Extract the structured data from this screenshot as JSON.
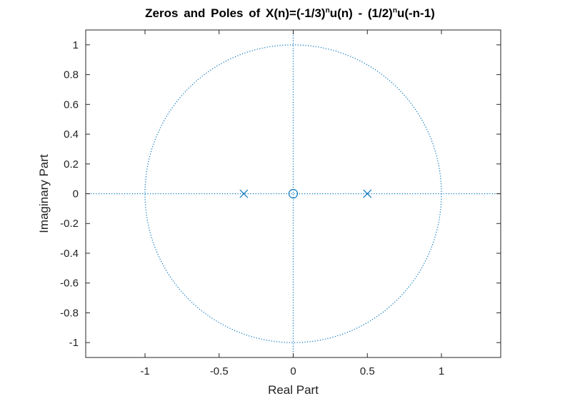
{
  "chart_data": {
    "type": "scatter",
    "title_parts": {
      "pre": "Zeros and Poles of X(n)=(-1/3)",
      "sup1": "n",
      "mid": "u(n) - (1/2)",
      "sup2": "n",
      "post": "u(-n-1)"
    },
    "xlabel": "Real Part",
    "ylabel": "Imaginary Part",
    "xlim": [
      -1.4,
      1.4
    ],
    "ylim": [
      -1.1,
      1.1
    ],
    "x_ticks": [
      -1,
      -0.5,
      0,
      0.5,
      1
    ],
    "x_tick_labels": [
      "-1",
      "-0.5",
      "0",
      "0.5",
      "1"
    ],
    "y_ticks": [
      1,
      0.8,
      0.6,
      0.4,
      0.2,
      0,
      -0.2,
      -0.4,
      -0.6,
      -0.8,
      -1
    ],
    "y_tick_labels": [
      "1",
      "0.8",
      "0.6",
      "0.4",
      "0.2",
      "0",
      "-0.2",
      "-0.4",
      "-0.6",
      "-0.8",
      "-1"
    ],
    "grid": false,
    "unit_circle": {
      "radius": 1
    },
    "zeros": [
      {
        "re": 0,
        "im": 0
      }
    ],
    "poles": [
      {
        "re": -0.3333,
        "im": 0
      },
      {
        "re": 0.5,
        "im": 0
      }
    ],
    "colors": {
      "marker": "#0072BD",
      "axes": "#262626"
    }
  }
}
